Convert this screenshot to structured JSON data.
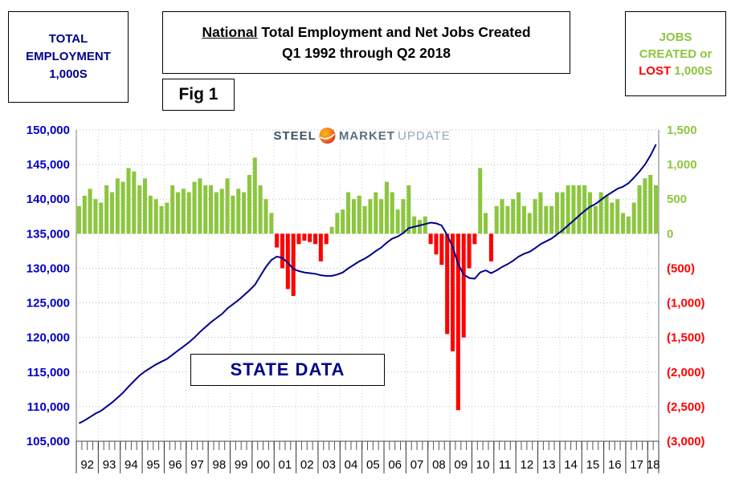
{
  "header": {
    "left_box": {
      "line1": "TOTAL",
      "line2": "EMPLOYMENT",
      "line3": "1,000S"
    },
    "title": {
      "underlined": "National",
      "rest": " Total Employment and Net Jobs Created",
      "line2": "Q1 1992 through Q2 2018"
    },
    "fig_label": "Fig 1",
    "right_box": {
      "line1": "JOBS",
      "line2": "CREATED or",
      "line3_red": "LOST",
      "line3_green": " 1,000S"
    }
  },
  "logo": {
    "word1": "STEEL",
    "word2": "MARKET",
    "word3": "UPDATE"
  },
  "annotation": "STATE DATA",
  "chart_data": {
    "type": "combo-bar-line",
    "title": "National Total Employment and Net Jobs Created Q1 1992 through Q2 2018",
    "x_unit": "quarter",
    "years": [
      "92",
      "93",
      "94",
      "95",
      "96",
      "97",
      "98",
      "99",
      "00",
      "01",
      "02",
      "03",
      "04",
      "05",
      "06",
      "07",
      "08",
      "09",
      "10",
      "11",
      "12",
      "13",
      "14",
      "15",
      "16",
      "17",
      "18"
    ],
    "quarters_per_year": [
      4,
      4,
      4,
      4,
      4,
      4,
      4,
      4,
      4,
      4,
      4,
      4,
      4,
      4,
      4,
      4,
      4,
      4,
      4,
      4,
      4,
      4,
      4,
      4,
      4,
      4,
      2
    ],
    "left_axis": {
      "label": "Total Employment 1,000s",
      "min": 105000,
      "max": 150000,
      "step": 5000
    },
    "right_axis": {
      "label": "Jobs Created or Lost 1,000s",
      "min": -3000,
      "max": 1500,
      "step": 500
    },
    "grid": true,
    "legend": "none",
    "colors": {
      "bar_positive": "#8CC63E",
      "bar_negative": "#FF0000",
      "line": "#00008B",
      "left_axis_text": "#0000CC",
      "right_axis_positive": "#8CC63E",
      "right_axis_negative": "#FF0000",
      "gridline": "#b8b8b8",
      "spine": "#777777",
      "year_text": "#000000"
    },
    "series": [
      {
        "name": "Net Jobs Created or Lost (1,000s)",
        "type": "bar",
        "axis": "right",
        "values": [
          400,
          550,
          650,
          500,
          450,
          700,
          600,
          800,
          750,
          950,
          900,
          700,
          800,
          550,
          500,
          400,
          450,
          700,
          600,
          650,
          600,
          750,
          800,
          700,
          700,
          600,
          650,
          800,
          550,
          650,
          600,
          850,
          1100,
          700,
          500,
          300,
          -200,
          -500,
          -800,
          -900,
          -150,
          -100,
          -120,
          -150,
          -400,
          -150,
          100,
          300,
          350,
          600,
          500,
          550,
          400,
          500,
          600,
          500,
          750,
          600,
          350,
          500,
          700,
          250,
          200,
          250,
          -150,
          -300,
          -450,
          -1450,
          -1700,
          -2550,
          -1500,
          -500,
          -150,
          950,
          300,
          -400,
          400,
          500,
          400,
          500,
          600,
          400,
          300,
          500,
          600,
          400,
          400,
          600,
          600,
          700,
          700,
          700,
          700,
          600,
          400,
          600,
          550,
          450,
          500,
          300,
          250,
          450,
          700,
          800,
          850,
          700
        ]
      },
      {
        "name": "Total Employment (1,000s)",
        "type": "line",
        "axis": "left",
        "values": [
          107600,
          108000,
          108500,
          109000,
          109400,
          110000,
          110600,
          111300,
          112000,
          112900,
          113700,
          114500,
          115100,
          115600,
          116100,
          116500,
          116900,
          117500,
          118100,
          118700,
          119300,
          120000,
          120800,
          121500,
          122200,
          122800,
          123400,
          124200,
          124800,
          125400,
          126100,
          126800,
          127600,
          128900,
          130200,
          131200,
          131700,
          131500,
          130800,
          129900,
          129600,
          129400,
          129300,
          129200,
          129000,
          128900,
          128900,
          129100,
          129400,
          130000,
          130500,
          131000,
          131400,
          131900,
          132500,
          133000,
          133700,
          134300,
          134600,
          135100,
          135800,
          136000,
          136200,
          136400,
          136600,
          136500,
          136200,
          134800,
          133100,
          130600,
          129100,
          128600,
          128500,
          129400,
          129700,
          129300,
          129700,
          130200,
          130600,
          131100,
          131700,
          132100,
          132400,
          132900,
          133500,
          133900,
          134300,
          134900,
          135500,
          136200,
          136900,
          137600,
          138300,
          138900,
          139300,
          139900,
          140500,
          141000,
          141500,
          141800,
          142300,
          143100,
          144000,
          145000,
          146300,
          147900
        ]
      }
    ]
  }
}
